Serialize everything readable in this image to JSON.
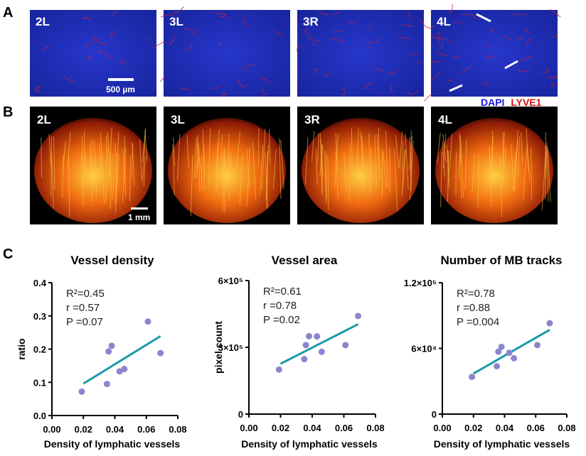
{
  "panels": {
    "A": {
      "label": "A",
      "images": [
        "2L",
        "3L",
        "3R",
        "4L"
      ],
      "scale_bar": "500 µm",
      "legend": [
        {
          "text": "DAPI",
          "color": "#1a1adc"
        },
        {
          "text": "LYVE1",
          "color": "#d01010"
        }
      ]
    },
    "B": {
      "label": "B",
      "images": [
        "2L",
        "3L",
        "3R",
        "4L"
      ],
      "scale_bar": "1 mm"
    },
    "C": {
      "label": "C"
    }
  },
  "colors": {
    "points": "#8b86cc",
    "fit_line": "#1a9aa8",
    "tissue_A": "#1f2fbf",
    "tissue_B": "#ff8a1a"
  },
  "chart_data": [
    {
      "type": "scatter",
      "title": "Vessel density",
      "xlabel": "Density of lymphatic vessels",
      "ylabel": "ratio",
      "xlim": [
        0,
        0.08
      ],
      "ylim": [
        0,
        0.4
      ],
      "xticks": [
        "0.00",
        "0.02",
        "0.04",
        "0.06",
        "0.08"
      ],
      "xtick_values": [
        0,
        0.02,
        0.04,
        0.06,
        0.08
      ],
      "yticks": [
        "0.0",
        "0.1",
        "0.2",
        "0.3",
        "0.4"
      ],
      "ytick_values": [
        0,
        0.1,
        0.2,
        0.3,
        0.4
      ],
      "x": [
        0.019,
        0.035,
        0.036,
        0.038,
        0.043,
        0.046,
        0.061,
        0.069
      ],
      "y": [
        0.072,
        0.095,
        0.193,
        0.21,
        0.133,
        0.14,
        0.283,
        0.188
      ],
      "fit": {
        "x": [
          0.02,
          0.069
        ],
        "y": [
          0.096,
          0.239
        ]
      },
      "stats": [
        "R²=0.45",
        "r  =0.57",
        "P =0.07"
      ]
    },
    {
      "type": "scatter",
      "title": "Vessel area",
      "xlabel": "Density of lymphatic vessels",
      "ylabel": "pixel count",
      "xlim": [
        0,
        0.08
      ],
      "ylim": [
        0,
        600000
      ],
      "xticks": [
        "0.00",
        "0.02",
        "0.04",
        "0.06",
        "0.08"
      ],
      "xtick_values": [
        0,
        0.02,
        0.04,
        0.06,
        0.08
      ],
      "yticks": [
        "0",
        "3×10⁵",
        "6×10⁵"
      ],
      "ytick_values": [
        0,
        300000,
        600000
      ],
      "x": [
        0.019,
        0.035,
        0.036,
        0.038,
        0.043,
        0.046,
        0.061,
        0.069
      ],
      "y": [
        200000,
        247000,
        310000,
        350000,
        349000,
        280000,
        310000,
        441000
      ],
      "fit": {
        "x": [
          0.02,
          0.069
        ],
        "y": [
          226000,
          404000
        ]
      },
      "stats": [
        "R²=0.61",
        "r  =0.78",
        "P =0.02"
      ]
    },
    {
      "type": "scatter",
      "title": "Number of MB tracks",
      "xlabel": "Density of lymphatic vessels",
      "ylabel": "",
      "xlim": [
        0,
        0.08
      ],
      "ylim": [
        0,
        120000
      ],
      "xticks": [
        "0.00",
        "0.02",
        "0.04",
        "0.06",
        "0.08"
      ],
      "xtick_values": [
        0,
        0.02,
        0.04,
        0.06,
        0.08
      ],
      "yticks": [
        "0",
        "6×10⁴",
        "1.2×10⁵"
      ],
      "ytick_values": [
        0,
        60000,
        120000
      ],
      "x": [
        0.019,
        0.035,
        0.036,
        0.038,
        0.043,
        0.046,
        0.061,
        0.069
      ],
      "y": [
        34000,
        43700,
        57000,
        61400,
        56000,
        51000,
        63000,
        83000
      ],
      "fit": {
        "x": [
          0.02,
          0.069
        ],
        "y": [
          37000,
          77000
        ]
      },
      "stats": [
        "R²=0.78",
        "r  =0.88",
        "P =0.004"
      ]
    }
  ]
}
